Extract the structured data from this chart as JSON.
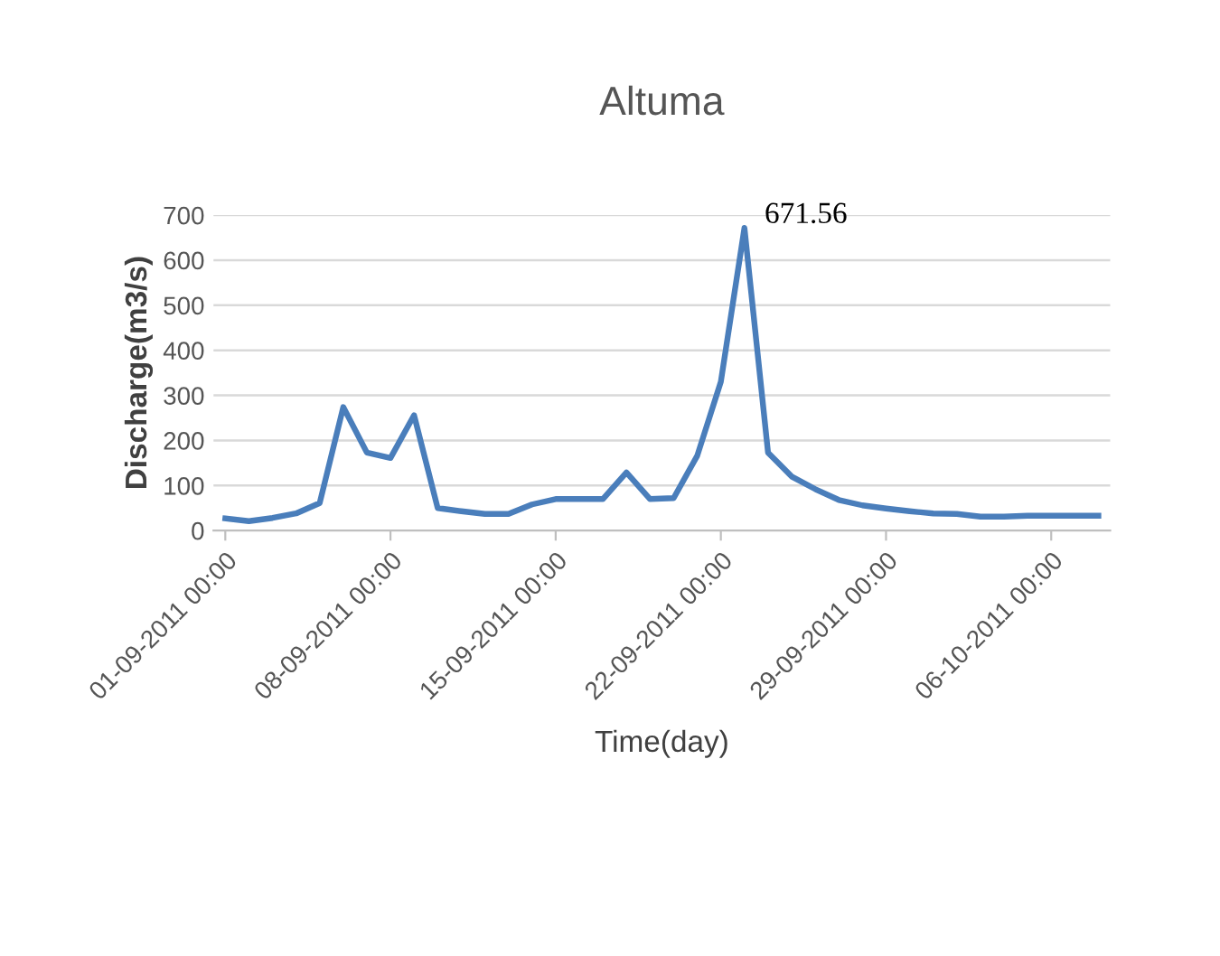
{
  "chart_data": {
    "type": "line",
    "title": "Altuma",
    "xlabel": "Time(day)",
    "ylabel": "Discharge(m3/s)",
    "x": [
      "2011-09-01",
      "2011-09-02",
      "2011-09-03",
      "2011-09-04",
      "2011-09-05",
      "2011-09-06",
      "2011-09-07",
      "2011-09-08",
      "2011-09-09",
      "2011-09-10",
      "2011-09-11",
      "2011-09-12",
      "2011-09-13",
      "2011-09-14",
      "2011-09-15",
      "2011-09-16",
      "2011-09-17",
      "2011-09-18",
      "2011-09-19",
      "2011-09-20",
      "2011-09-21",
      "2011-09-22",
      "2011-09-23",
      "2011-09-24",
      "2011-09-25",
      "2011-09-26",
      "2011-09-27",
      "2011-09-28",
      "2011-09-29",
      "2011-09-30",
      "2011-10-01",
      "2011-10-02",
      "2011-10-03",
      "2011-10-04",
      "2011-10-05",
      "2011-10-06",
      "2011-10-07",
      "2011-10-08"
    ],
    "series": [
      {
        "color": "#4a7ebb",
        "values": [
          27,
          21,
          28,
          38,
          61,
          274,
          173,
          161,
          256,
          50,
          43,
          37,
          37,
          58,
          70,
          70,
          70,
          129,
          70,
          72,
          166,
          330,
          671.56,
          173,
          120,
          92,
          68,
          56,
          49,
          43,
          38,
          37,
          31,
          31,
          33,
          33,
          33,
          33
        ]
      }
    ],
    "annotations": [
      {
        "text": "671.56",
        "x": "2011-09-23",
        "y": 671.56
      }
    ],
    "xlim": [
      "2011-08-31T12:00",
      "2011-10-08T12:00"
    ],
    "xticks": [
      {
        "value": "2011-09-01",
        "label": "01-09-2011 00:00"
      },
      {
        "value": "2011-09-08",
        "label": "08-09-2011 00:00"
      },
      {
        "value": "2011-09-15",
        "label": "15-09-2011 00:00"
      },
      {
        "value": "2011-09-22",
        "label": "22-09-2011 00:00"
      },
      {
        "value": "2011-09-29",
        "label": "29-09-2011 00:00"
      },
      {
        "value": "2011-10-06",
        "label": "06-10-2011 00:00"
      }
    ],
    "ylim": [
      0,
      700
    ],
    "yticks": [
      0,
      100,
      200,
      300,
      400,
      500,
      600,
      700
    ],
    "grid": "y",
    "marker": "none",
    "line_style": "solid"
  }
}
